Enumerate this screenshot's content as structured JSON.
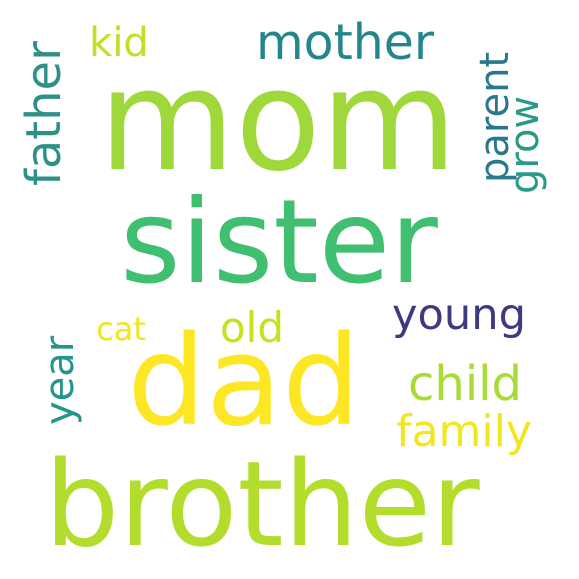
{
  "words": [
    {
      "text": "mom",
      "color": "#9fd83a",
      "orientation": "horizontal"
    },
    {
      "text": "sister",
      "color": "#3fbf6f",
      "orientation": "horizontal"
    },
    {
      "text": "dad",
      "color": "#fde725",
      "orientation": "horizontal"
    },
    {
      "text": "brother",
      "color": "#b2dd2c",
      "orientation": "horizontal"
    },
    {
      "text": "mother",
      "color": "#23868c",
      "orientation": "horizontal"
    },
    {
      "text": "kid",
      "color": "#c0df25",
      "orientation": "horizontal"
    },
    {
      "text": "father",
      "color": "#2f8f89",
      "orientation": "vertical"
    },
    {
      "text": "parent",
      "color": "#2a788e",
      "orientation": "vertical"
    },
    {
      "text": "grow",
      "color": "#2a9a87",
      "orientation": "vertical"
    },
    {
      "text": "young",
      "color": "#3e3a81",
      "orientation": "horizontal"
    },
    {
      "text": "cat",
      "color": "#f1e51d",
      "orientation": "horizontal"
    },
    {
      "text": "old",
      "color": "#c7e020",
      "orientation": "horizontal"
    },
    {
      "text": "child",
      "color": "#a8db34",
      "orientation": "horizontal"
    },
    {
      "text": "year",
      "color": "#25948a",
      "orientation": "vertical"
    },
    {
      "text": "family",
      "color": "#f4e61e",
      "orientation": "horizontal"
    }
  ]
}
